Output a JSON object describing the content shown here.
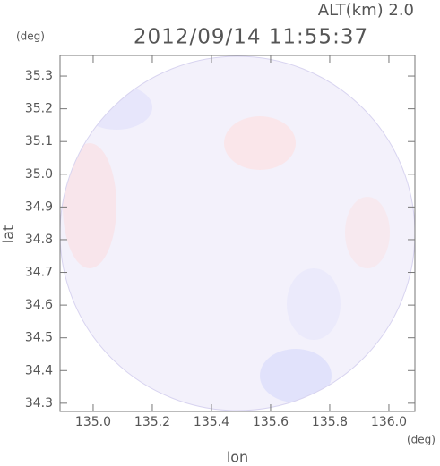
{
  "chart_data": {
    "type": "radar-map",
    "title": "2012/09/14 11:55:37",
    "annotation": "ALT(km) 2.0",
    "x_label": "lon",
    "y_label": "lat",
    "x_unit": "(deg)",
    "y_unit": "(deg)",
    "xlim": [
      134.888,
      136.088
    ],
    "ylim": [
      34.275,
      35.363
    ],
    "xticks": [
      {
        "value": 135,
        "label": "135.0"
      },
      135.2,
      135.4,
      135.6,
      135.8,
      {
        "value": 136,
        "label": "136.0"
      }
    ],
    "yticks": [
      34.3,
      34.4,
      34.5,
      34.6,
      34.7,
      34.8,
      34.9,
      {
        "value": 35,
        "label": "35.0"
      },
      35.1,
      35.2,
      35.3
    ]
  }
}
